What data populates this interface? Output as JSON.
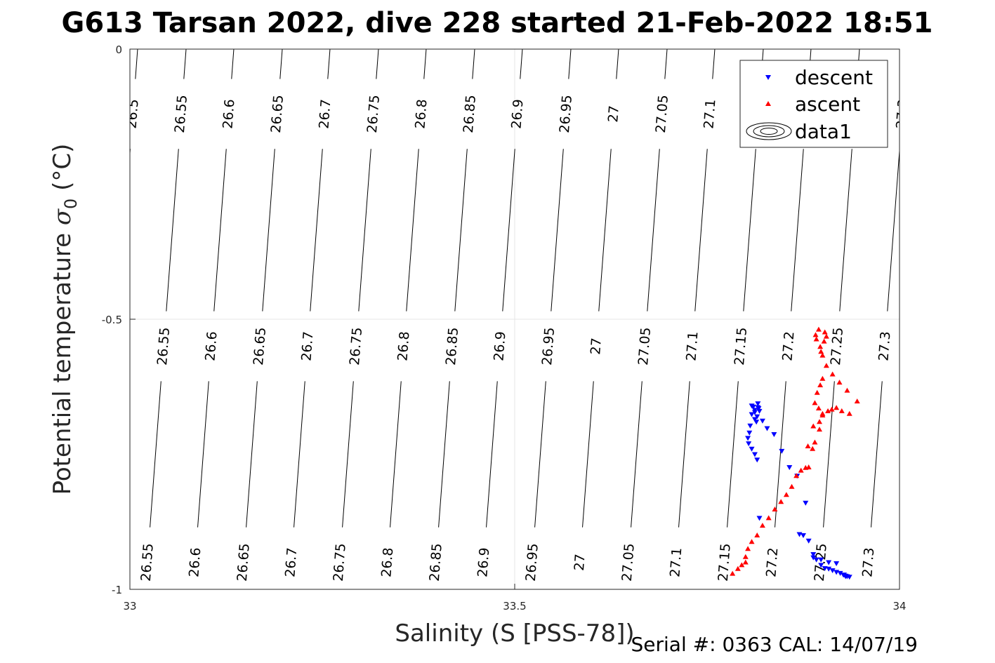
{
  "title": "G613 Tarsan 2022, dive 228 started 21-Feb-2022 18:51",
  "footer": "Serial #: 0363  CAL: 14/07/19",
  "chart_data": {
    "type": "scatter",
    "title": "G613 Tarsan 2022, dive 228 started 21-Feb-2022 18:51",
    "xlabel": "Salinity (S [PSS-78])",
    "ylabel_text": "Potential temperature ",
    "ylabel_sigma": "σ",
    "ylabel_sub": "0",
    "ylabel_unit": " (°C)",
    "xlim": [
      33,
      34
    ],
    "ylim": [
      -1,
      0
    ],
    "xticks": [
      33,
      33.5,
      34
    ],
    "xtick_labels": [
      "33",
      "33.5",
      "34"
    ],
    "yticks": [
      -1,
      -0.5,
      0
    ],
    "ytick_labels": [
      "-1",
      "-0.5",
      "0"
    ],
    "grid": true,
    "legend_position": "top-right",
    "density_contours": {
      "levels": [
        26.5,
        26.55,
        26.6,
        26.65,
        26.7,
        26.75,
        26.8,
        26.85,
        26.9,
        26.95,
        27,
        27.05,
        27.1,
        27.15,
        27.2,
        27.25,
        27.3
      ],
      "label_texts": [
        "26.5",
        "26.55",
        "26.6",
        "26.65",
        "26.7",
        "26.75",
        "26.8",
        "26.85",
        "26.9",
        "26.95",
        "27",
        "27.05",
        "27.1",
        "27.15",
        "27.2",
        "27.25",
        "27.3"
      ],
      "salinity_at_theta_0": [
        33.01,
        33.073,
        33.135,
        33.198,
        33.26,
        33.323,
        33.385,
        33.448,
        33.51,
        33.573,
        33.635,
        33.698,
        33.76,
        33.823,
        33.885,
        33.948,
        34.01
      ],
      "salinity_at_theta_minus1": [
        32.958,
        33.02,
        33.082,
        33.145,
        33.207,
        33.27,
        33.332,
        33.395,
        33.457,
        33.52,
        33.582,
        33.645,
        33.707,
        33.77,
        33.832,
        33.895,
        33.957
      ]
    },
    "series": [
      {
        "name": "descent",
        "color": "#0000ff",
        "marker": "triangle-down",
        "x": [
          33.818,
          33.87,
          33.875,
          33.882,
          33.888,
          33.892,
          33.898,
          33.903,
          33.908,
          33.913,
          33.918,
          33.923,
          33.928,
          33.93,
          33.932,
          33.935,
          33.93,
          33.927,
          33.918,
          33.908,
          33.898,
          33.888,
          33.878,
          33.867,
          33.857,
          33.847,
          33.837,
          33.828,
          33.822,
          33.818,
          33.817,
          33.816,
          33.816,
          33.815,
          33.814,
          33.812,
          33.812,
          33.812,
          33.81,
          33.808,
          33.808,
          33.806,
          33.805,
          33.803,
          33.804,
          33.808,
          33.812,
          33.815
        ],
        "y": [
          -0.868,
          -0.898,
          -0.9,
          -0.91,
          -0.935,
          -0.945,
          -0.955,
          -0.961,
          -0.962,
          -0.965,
          -0.968,
          -0.97,
          -0.973,
          -0.975,
          -0.976,
          -0.977,
          -0.976,
          -0.973,
          -0.952,
          -0.95,
          -0.945,
          -0.941,
          -0.84,
          -0.79,
          -0.774,
          -0.744,
          -0.713,
          -0.702,
          -0.688,
          -0.67,
          -0.665,
          -0.656,
          -0.663,
          -0.68,
          -0.69,
          -0.685,
          -0.672,
          -0.668,
          -0.662,
          -0.66,
          -0.676,
          -0.697,
          -0.71,
          -0.72,
          -0.73,
          -0.74,
          -0.75,
          -0.76
        ]
      },
      {
        "name": "ascent",
        "color": "#ff0000",
        "marker": "triangle-up",
        "x": [
          33.783,
          33.79,
          33.795,
          33.8,
          33.8,
          33.803,
          33.808,
          33.815,
          33.822,
          33.83,
          33.838,
          33.846,
          33.853,
          33.86,
          33.866,
          33.872,
          33.878,
          33.882,
          33.887,
          33.89,
          33.896,
          33.896,
          33.9,
          33.907,
          33.912,
          33.918,
          33.925,
          33.935,
          33.945,
          33.932,
          33.922,
          33.913,
          33.905,
          33.9,
          33.897,
          33.902,
          33.905,
          33.903,
          33.895,
          33.891,
          33.892,
          33.898,
          33.9,
          33.897,
          33.893,
          33.89,
          33.895,
          33.9,
          33.888,
          33.881
        ],
        "y": [
          -0.971,
          -0.962,
          -0.955,
          -0.95,
          -0.94,
          -0.925,
          -0.912,
          -0.9,
          -0.882,
          -0.868,
          -0.852,
          -0.838,
          -0.825,
          -0.81,
          -0.79,
          -0.78,
          -0.775,
          -0.774,
          -0.74,
          -0.728,
          -0.704,
          -0.69,
          -0.678,
          -0.67,
          -0.667,
          -0.664,
          -0.67,
          -0.675,
          -0.652,
          -0.632,
          -0.617,
          -0.602,
          -0.586,
          -0.567,
          -0.551,
          -0.541,
          -0.532,
          -0.524,
          -0.519,
          -0.529,
          -0.537,
          -0.56,
          -0.61,
          -0.622,
          -0.636,
          -0.655,
          -0.665,
          -0.675,
          -0.698,
          -0.735
        ]
      }
    ],
    "legend": [
      {
        "label": "descent",
        "marker": "triangle-down",
        "color": "#0000ff"
      },
      {
        "label": "ascent",
        "marker": "triangle-up",
        "color": "#ff0000"
      },
      {
        "label": "data1",
        "marker": "contour-icon",
        "color": "#000000"
      }
    ]
  }
}
